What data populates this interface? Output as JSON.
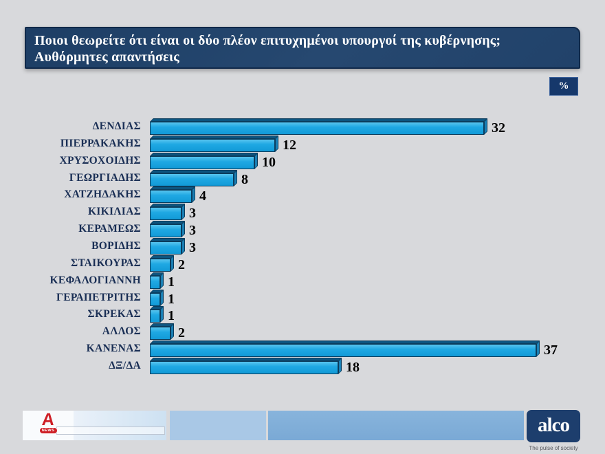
{
  "header": {
    "title_line1": "Ποιοι θεωρείτε ότι είναι οι δύο πλέον επιτυχημένοι υπουργοί της κυβέρνησης;",
    "title_line2": "Αυθόρμητες απαντήσεις",
    "unit_badge": "%"
  },
  "chart_data": {
    "type": "bar",
    "orientation": "horizontal",
    "style": "3d",
    "unit": "%",
    "title": "Ποιοι θεωρείτε ότι είναι οι δύο πλέον επιτυχημένοι υπουργοί της κυβέρνησης; Αυθόρμητες απαντήσεις",
    "categories": [
      "ΔΕΝΔΙΑΣ",
      "ΠΙΕΡΡΑΚΑΚΗΣ",
      "ΧΡΥΣΟΧΟΙΔΗΣ",
      "ΓΕΩΡΓΙΑΔΗΣ",
      "ΧΑΤΖΗΔΑΚΗΣ",
      "ΚΙΚΙΛΙΑΣ",
      "ΚΕΡΑΜΕΩΣ",
      "ΒΟΡΙΔΗΣ",
      "ΣΤΑΙΚΟΥΡΑΣ",
      "ΚΕΦΑΛΟΓΙΑΝΝΗ",
      "ΓΕΡΑΠΕΤΡΙΤΗΣ",
      "ΣΚΡΕΚΑΣ",
      "ΑΛΛΟΣ",
      "ΚΑΝΕΝΑΣ",
      "ΔΞ/ΔΑ"
    ],
    "values": [
      32,
      12,
      10,
      8,
      4,
      3,
      3,
      3,
      2,
      1,
      1,
      1,
      2,
      37,
      18
    ],
    "xlim": [
      0,
      40
    ],
    "grid": false,
    "data_labels": true,
    "colors": {
      "bar_front": "#1fa8e3",
      "bar_top": "#0d5580",
      "bar_side": "#1a7fb4",
      "bar_outline": "#0b3c5c",
      "category_label": "#1a2f55",
      "value_label": "#000000"
    }
  },
  "footer": {
    "alpha_logo": {
      "letter": "A",
      "badge": "NEWS"
    },
    "alco_logo": {
      "name": "alco",
      "tagline": "The pulse of society"
    }
  },
  "colors": {
    "title_bar_bg": "#24466e",
    "title_bar_border": "#10294a",
    "badge_bg": "#16386b",
    "footer_segment_light": "#d9e7f4",
    "footer_segment_mid": "#a9c8e6",
    "footer_segment_dark": "#7fadd9",
    "alpha_red": "#ce1f26",
    "alco_navy": "#1d3e6d"
  }
}
